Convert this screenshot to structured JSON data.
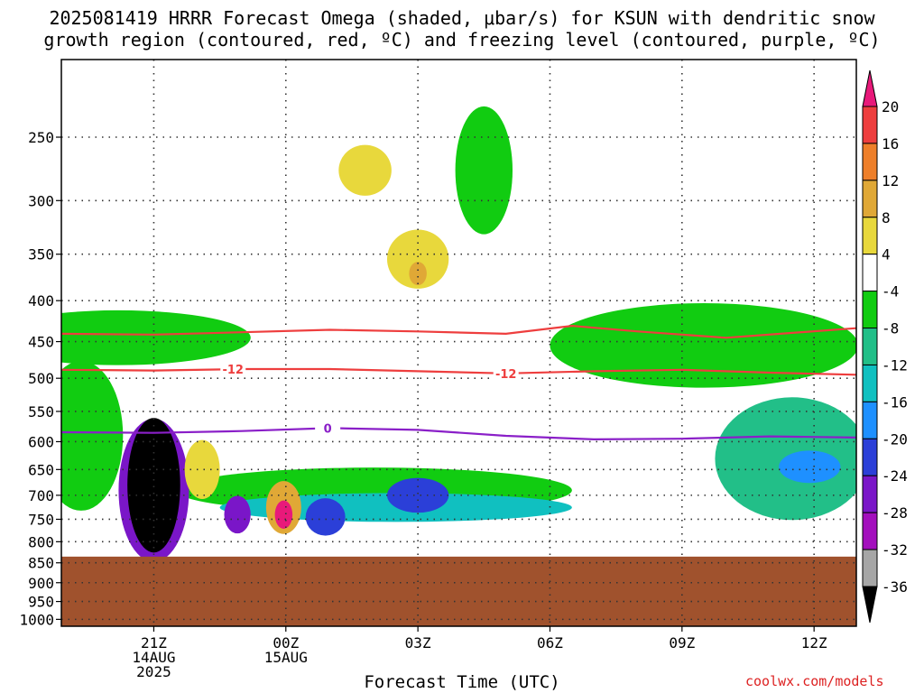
{
  "title_line1": "2025081419 HRRR Forecast Omega (shaded, μbar/s) for KSUN with dendritic snow",
  "title_line2": "growth region (contoured, red, ºC) and freezing level (contoured, purple, ºC)",
  "credit": "coolwx.com/models",
  "chart_data": {
    "type": "heatmap",
    "title": "2025081419 HRRR Forecast Omega (shaded, μbar/s) for KSUN with dendritic snow growth region (contoured, red, ºC) and freezing level (contoured, purple, ºC)",
    "xlabel": "Forecast Time (UTC)",
    "ylabel": "",
    "y_scale": "log-pressure",
    "y_ticks": [
      250,
      300,
      350,
      400,
      450,
      500,
      550,
      600,
      650,
      700,
      750,
      800,
      850,
      900,
      950,
      1000
    ],
    "x_ticks": [
      {
        "hours": 2,
        "line1": "21Z",
        "line2": "14AUG",
        "line3": "2025"
      },
      {
        "hours": 5,
        "line1": "00Z",
        "line2": "15AUG",
        "line3": ""
      },
      {
        "hours": 8,
        "line1": "03Z",
        "line2": "",
        "line3": ""
      },
      {
        "hours": 11,
        "line1": "06Z",
        "line2": "",
        "line3": ""
      },
      {
        "hours": 14,
        "line1": "09Z",
        "line2": "",
        "line3": ""
      },
      {
        "hours": 17,
        "line1": "12Z",
        "line2": "",
        "line3": ""
      }
    ],
    "x_range_hours": [
      -0.1,
      17.96
    ],
    "y_range_hpa": [
      200,
      1020
    ],
    "ground_level_hpa": 835,
    "colorbar": {
      "levels": [
        "20",
        "16",
        "12",
        "8",
        "4",
        "-4",
        "-8",
        "-12",
        "-16",
        "-20",
        "-24",
        "-28",
        "-32",
        "-36"
      ],
      "colors": [
        "#e8197a",
        "#ee3e3e",
        "#ee7f2a",
        "#e0a836",
        "#e8d83c",
        "#ffffff",
        "#11cc11",
        "#22bf88",
        "#10c0c0",
        "#1e90ff",
        "#2b3fd8",
        "#7a16c8",
        "#a30fbd",
        "#a6a6a6",
        "#000000"
      ]
    },
    "shading_blobs": [
      {
        "x_h": 0.35,
        "p": 590,
        "w_h": 1.9,
        "h_hpa": 250,
        "value": "-4",
        "color": "#11cc11"
      },
      {
        "x_h": 1.2,
        "p": 445,
        "w_h": 6.0,
        "h_hpa": 70,
        "value": "-4",
        "color": "#11cc11"
      },
      {
        "x_h": 7.0,
        "p": 690,
        "w_h": 9.0,
        "h_hpa": 90,
        "value": "-4",
        "color": "#11cc11"
      },
      {
        "x_h": 9.5,
        "p": 275,
        "w_h": 1.3,
        "h_hpa": 100,
        "value": "-4",
        "color": "#11cc11"
      },
      {
        "x_h": 14.5,
        "p": 455,
        "w_h": 7.0,
        "h_hpa": 110,
        "value": "-4",
        "color": "#11cc11"
      },
      {
        "x_h": 16.5,
        "p": 630,
        "w_h": 3.5,
        "h_hpa": 220,
        "value": "-8",
        "color": "#22bf88"
      },
      {
        "x_h": 7.5,
        "p": 725,
        "w_h": 8.0,
        "h_hpa": 60,
        "value": "-12",
        "color": "#10c0c0"
      },
      {
        "x_h": 16.9,
        "p": 645,
        "w_h": 1.4,
        "h_hpa": 60,
        "value": "-16",
        "color": "#1e90ff"
      },
      {
        "x_h": 8.0,
        "p": 700,
        "w_h": 1.4,
        "h_hpa": 70,
        "value": "-24",
        "color": "#2b3fd8"
      },
      {
        "x_h": 2.0,
        "p": 690,
        "w_h": 1.6,
        "h_hpa": 280,
        "value": "-28",
        "color": "#7a16c8"
      },
      {
        "x_h": 3.9,
        "p": 740,
        "w_h": 0.6,
        "h_hpa": 80,
        "value": "-28",
        "color": "#7a16c8"
      },
      {
        "x_h": 5.9,
        "p": 745,
        "w_h": 0.9,
        "h_hpa": 80,
        "value": "-24",
        "color": "#2b3fd8"
      },
      {
        "x_h": 2.0,
        "p": 680,
        "w_h": 1.2,
        "h_hpa": 260,
        "value": "-36",
        "color": "#000000"
      },
      {
        "x_h": 4.95,
        "p": 725,
        "w_h": 0.8,
        "h_hpa": 110,
        "value": "8",
        "color": "#e0a836"
      },
      {
        "x_h": 4.95,
        "p": 740,
        "w_h": 0.4,
        "h_hpa": 60,
        "value": "20",
        "color": "#e8197a"
      },
      {
        "x_h": 8.0,
        "p": 355,
        "w_h": 1.4,
        "h_hpa": 60,
        "value": "4",
        "color": "#e8d83c"
      },
      {
        "x_h": 8.0,
        "p": 370,
        "w_h": 0.4,
        "h_hpa": 25,
        "value": "8",
        "color": "#e0a836"
      },
      {
        "x_h": 6.8,
        "p": 275,
        "w_h": 1.2,
        "h_hpa": 40,
        "value": "4",
        "color": "#e8d83c"
      },
      {
        "x_h": 3.1,
        "p": 650,
        "w_h": 0.8,
        "h_hpa": 110,
        "value": "4",
        "color": "#e8d83c"
      }
    ],
    "contours": [
      {
        "name": "-12",
        "label_at_h": [
          3.8,
          10.0
        ],
        "color": "#ee3e3e",
        "x_h": [
          -0.1,
          2,
          4,
          6,
          8,
          10,
          12,
          14,
          16,
          17.96
        ],
        "p": [
          488,
          489,
          487,
          487,
          490,
          493,
          490,
          488,
          492,
          495
        ]
      },
      {
        "name": "",
        "label_at_h": [],
        "color": "#ee3e3e",
        "x_h": [
          -0.1,
          2,
          4,
          6,
          8,
          10,
          11.5,
          13,
          15,
          17.96
        ],
        "p": [
          440,
          441,
          438,
          435,
          437,
          440,
          430,
          437,
          445,
          433
        ]
      },
      {
        "name": "0",
        "label_at_h": [
          5.95
        ],
        "color": "#8a1fc8",
        "x_h": [
          -0.1,
          2,
          4,
          6,
          8,
          10,
          12,
          14,
          16,
          17.96
        ],
        "p": [
          584,
          585,
          582,
          577,
          580,
          590,
          596,
          595,
          591,
          593
        ]
      }
    ]
  }
}
